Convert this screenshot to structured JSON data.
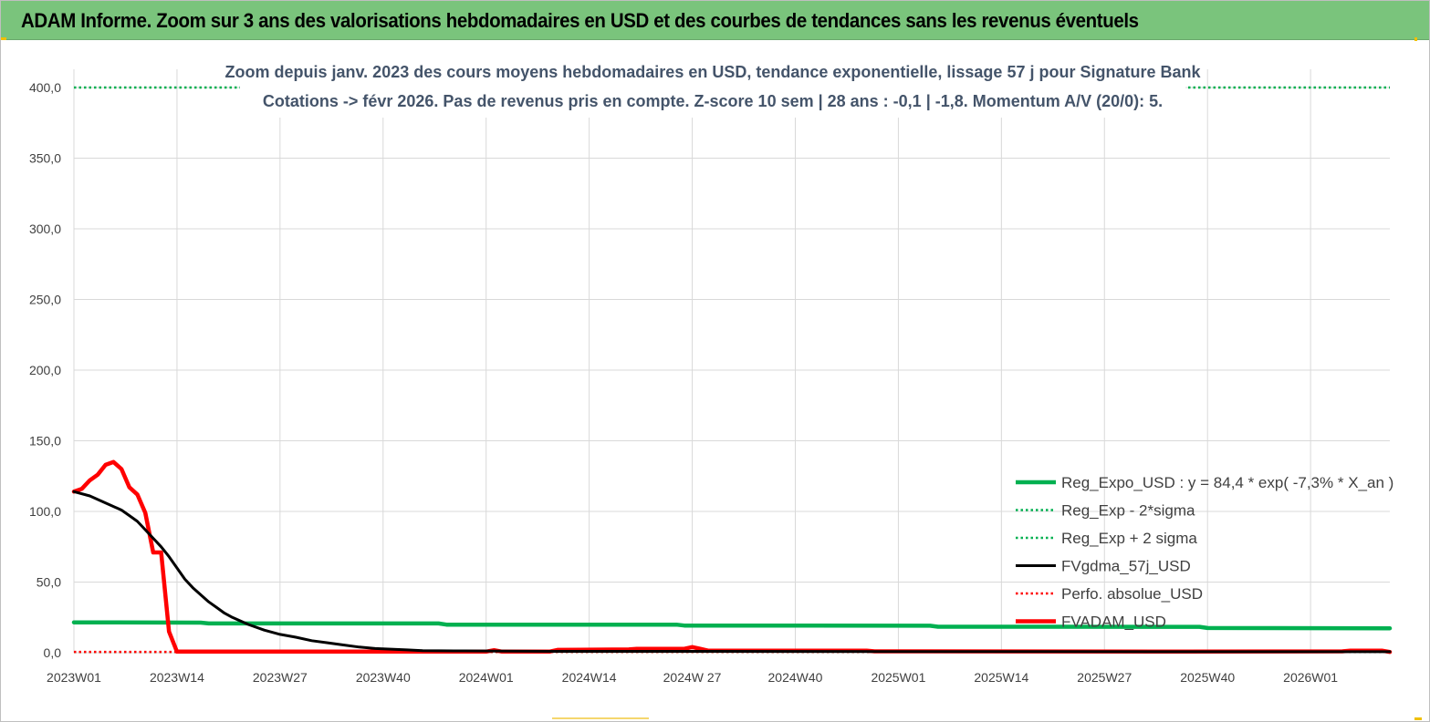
{
  "header": {
    "title": "ADAM Informe. Zoom sur 3 ans des valorisations hebdomadaires en USD et des courbes de tendances sans les revenus éventuels"
  },
  "chart_data": {
    "type": "line",
    "title_line1": "Zoom depuis janv. 2023 des cours moyens hebdomadaires en USD, tendance exponentielle, lissage 57 j pour Signature Bank",
    "title_line2": "Cotations -> févr 2026.  Pas de revenus pris en compte. Z-score 10 sem  | 28 ans : -0,1  | -1,8. Momentum A/V (20/0): 5.",
    "x_tick_labels": [
      "2023W01",
      "2023W14",
      "2023W27",
      "2023W40",
      "2024W01",
      "2024W14",
      "2024W 27",
      "2024W40",
      "2025W01",
      "2025W14",
      "2025W27",
      "2025W40",
      "2026W01"
    ],
    "x_tick_weeks": [
      0,
      13,
      26,
      39,
      52,
      65,
      78,
      91,
      104,
      117,
      130,
      143,
      156
    ],
    "x_range": [
      0,
      166
    ],
    "y_tick_labels": [
      "0,0",
      "50,0",
      "100,0",
      "150,0",
      "200,0",
      "250,0",
      "300,0",
      "350,0",
      "400,0"
    ],
    "ylim": [
      0,
      400
    ],
    "grid": true,
    "legend_position": "bottom-right",
    "series": [
      {
        "name": "Reg_Expo_USD : y = 84,4 * exp( -7,3% *  X_an )",
        "color": "#00b050",
        "style": "solid-thick",
        "points": [
          [
            0,
            21.5
          ],
          [
            16,
            21.3
          ],
          [
            17,
            20.7
          ],
          [
            46,
            20.7
          ],
          [
            47,
            19.9
          ],
          [
            76,
            19.9
          ],
          [
            77,
            19.2
          ],
          [
            108,
            19.1
          ],
          [
            109,
            18.4
          ],
          [
            142,
            18.3
          ],
          [
            143,
            17.5
          ],
          [
            166,
            17.3
          ]
        ]
      },
      {
        "name": "Reg_Exp - 2*sigma",
        "color": "#00b050",
        "style": "dotted",
        "points": [
          [
            0,
            0.5
          ],
          [
            166,
            0.5
          ]
        ]
      },
      {
        "name": "Reg_Exp + 2 sigma",
        "color": "#00b050",
        "style": "dotted",
        "points": [
          [
            0,
            400
          ],
          [
            166,
            400
          ]
        ]
      },
      {
        "name": "FVgdma_57j_USD",
        "color": "#000000",
        "style": "solid",
        "points": [
          [
            0,
            114
          ],
          [
            2,
            111
          ],
          [
            4,
            106
          ],
          [
            6,
            101
          ],
          [
            7,
            97
          ],
          [
            8,
            93
          ],
          [
            9,
            87
          ],
          [
            10,
            81
          ],
          [
            11,
            75
          ],
          [
            12,
            68
          ],
          [
            13,
            60
          ],
          [
            14,
            52
          ],
          [
            15,
            46
          ],
          [
            16,
            41
          ],
          [
            17,
            36
          ],
          [
            18,
            32
          ],
          [
            19,
            28
          ],
          [
            20,
            25
          ],
          [
            22,
            20
          ],
          [
            24,
            16
          ],
          [
            26,
            13
          ],
          [
            28,
            11
          ],
          [
            30,
            8.5
          ],
          [
            32,
            7
          ],
          [
            34,
            5.5
          ],
          [
            36,
            4
          ],
          [
            38,
            3
          ],
          [
            40,
            2.5
          ],
          [
            42,
            2
          ],
          [
            44,
            1.5
          ],
          [
            48,
            1.3
          ],
          [
            52,
            1.2
          ],
          [
            60,
            1
          ],
          [
            80,
            1
          ],
          [
            120,
            0.8
          ],
          [
            166,
            0.7
          ]
        ]
      },
      {
        "name": "Perfo. absolue_USD",
        "color": "#ff0000",
        "style": "dotted",
        "points": [
          [
            0,
            0.6
          ],
          [
            166,
            0.6
          ]
        ]
      },
      {
        "name": "FVADAM_USD",
        "color": "#ff0000",
        "style": "solid-thick",
        "points": [
          [
            0,
            114
          ],
          [
            1,
            116
          ],
          [
            2,
            122
          ],
          [
            3,
            126
          ],
          [
            4,
            133
          ],
          [
            5,
            135
          ],
          [
            6,
            130
          ],
          [
            7,
            117
          ],
          [
            8,
            112
          ],
          [
            9,
            99
          ],
          [
            10,
            71
          ],
          [
            11,
            71
          ],
          [
            12,
            15
          ],
          [
            13,
            0.8
          ],
          [
            52,
            0.8
          ],
          [
            53,
            1.8
          ],
          [
            54,
            0.8
          ],
          [
            60,
            0.8
          ],
          [
            61,
            2
          ],
          [
            70,
            2.3
          ],
          [
            71,
            2.8
          ],
          [
            77,
            2.8
          ],
          [
            78,
            4
          ],
          [
            79,
            2.8
          ],
          [
            80,
            1.5
          ],
          [
            100,
            1.5
          ],
          [
            101,
            1
          ],
          [
            140,
            0.8
          ],
          [
            160,
            1
          ],
          [
            161,
            1.5
          ],
          [
            165,
            1.5
          ],
          [
            166,
            0.5
          ]
        ]
      }
    ]
  }
}
